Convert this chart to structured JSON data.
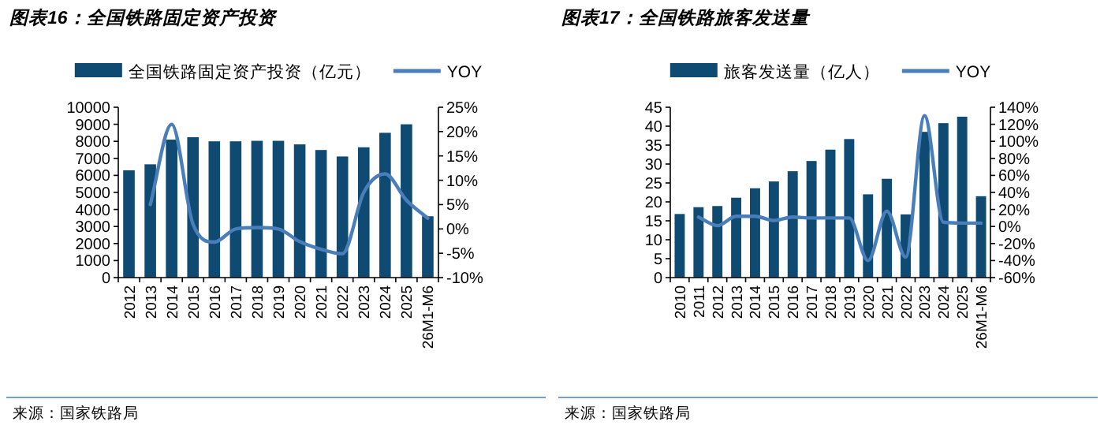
{
  "chart_data": [
    {
      "type": "bar",
      "title": "图表16：全国铁路固定资产投资",
      "categories": [
        "2012",
        "2013",
        "2014",
        "2015",
        "2016",
        "2017",
        "2018",
        "2019",
        "2020",
        "2021",
        "2022",
        "2023",
        "2024",
        "2025",
        "26M1-M6"
      ],
      "series": [
        {
          "name": "全国铁路固定资产投资（亿元）",
          "color": "#0e4a72",
          "values": [
            6300,
            6650,
            8100,
            8240,
            8000,
            8000,
            8030,
            8030,
            7820,
            7490,
            7110,
            7650,
            8500,
            9000,
            3600
          ]
        },
        {
          "name": "YOY",
          "type": "line",
          "axis": "y2",
          "color": "#4a7ebb",
          "values": [
            null,
            5,
            21.5,
            1,
            -2.7,
            0,
            0.3,
            0,
            -2.6,
            -4.2,
            -5.1,
            7.5,
            11.3,
            5.9,
            2.2
          ]
        }
      ],
      "ylim": [
        0,
        10000
      ],
      "yticks": [
        0,
        1000,
        2000,
        3000,
        4000,
        5000,
        6000,
        7000,
        8000,
        9000,
        10000
      ],
      "y2lim": [
        -10,
        25
      ],
      "y2ticks": [
        {
          "value": -10,
          "label": "-10%"
        },
        {
          "value": -5,
          "label": "-5%"
        },
        {
          "value": 0,
          "label": "0%"
        },
        {
          "value": 5,
          "label": "5%"
        },
        {
          "value": 10,
          "label": "10%"
        },
        {
          "value": 15,
          "label": "15%"
        },
        {
          "value": 20,
          "label": "20%"
        },
        {
          "value": 25,
          "label": "25%"
        }
      ],
      "legend": "top",
      "annotations": [
        "来源：国家铁路局"
      ]
    },
    {
      "type": "bar",
      "title": "图表17：全国铁路旅客发送量",
      "categories": [
        "2010",
        "2011",
        "2012",
        "2013",
        "2014",
        "2015",
        "2016",
        "2017",
        "2018",
        "2019",
        "2020",
        "2021",
        "2022",
        "2023",
        "2024",
        "2025",
        "26M1-M6"
      ],
      "series": [
        {
          "name": "旅客发送量（亿人）",
          "color": "#0e4a72",
          "values": [
            16.8,
            18.6,
            18.9,
            21.1,
            23.6,
            25.4,
            28.1,
            30.8,
            33.8,
            36.6,
            22.0,
            26.1,
            16.7,
            38.5,
            40.8,
            42.5,
            21.5
          ]
        },
        {
          "name": "YOY",
          "type": "line",
          "axis": "y2",
          "color": "#4a7ebb",
          "values": [
            null,
            11,
            1,
            12,
            12,
            7,
            11,
            10,
            10,
            10,
            -40,
            18,
            -36,
            130,
            5,
            4,
            4
          ]
        }
      ],
      "ylim": [
        0,
        45
      ],
      "yticks": [
        0,
        5,
        10,
        15,
        20,
        25,
        30,
        35,
        40,
        45
      ],
      "y2lim": [
        -60,
        140
      ],
      "y2ticks": [
        {
          "value": -60,
          "label": "-60%"
        },
        {
          "value": -40,
          "label": "-40%"
        },
        {
          "value": -20,
          "label": "-20%"
        },
        {
          "value": 0,
          "label": "0%"
        },
        {
          "value": 20,
          "label": "20%"
        },
        {
          "value": 40,
          "label": "40%"
        },
        {
          "value": 60,
          "label": "60%"
        },
        {
          "value": 80,
          "label": "80%"
        },
        {
          "value": 100,
          "label": "100%"
        },
        {
          "value": 120,
          "label": "120%"
        },
        {
          "value": 140,
          "label": "140%"
        }
      ],
      "legend": "top",
      "annotations": [
        "来源：国家铁路局"
      ]
    }
  ]
}
